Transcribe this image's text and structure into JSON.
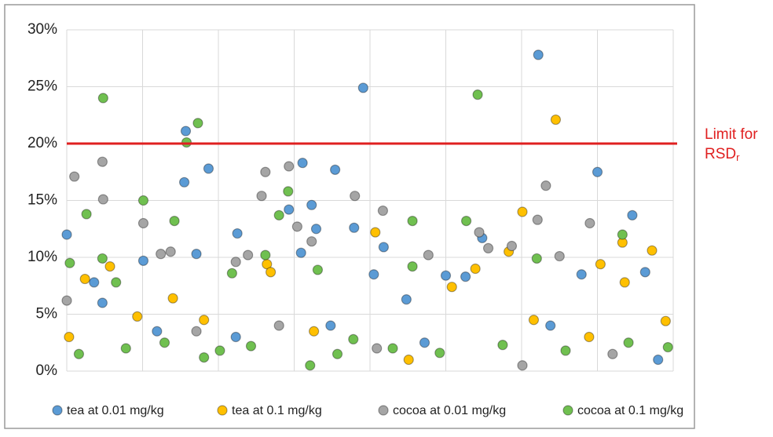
{
  "chart_data": {
    "type": "scatter",
    "xlim": [
      0,
      800
    ],
    "xticks": [
      0,
      100,
      200,
      300,
      400,
      500,
      600,
      700,
      800
    ],
    "ylim": [
      0,
      30
    ],
    "yticks": [
      {
        "value": 0,
        "label": "0%"
      },
      {
        "value": 5,
        "label": "5%"
      },
      {
        "value": 10,
        "label": "10%"
      },
      {
        "value": 15,
        "label": "15%"
      },
      {
        "value": 20,
        "label": "20%"
      },
      {
        "value": 25,
        "label": "25%"
      },
      {
        "value": 30,
        "label": "30%"
      }
    ],
    "grid": true,
    "legend": "bottom",
    "limit_line": {
      "value": 20,
      "color": "#e02020",
      "label": "Limit for",
      "label2": "RSD",
      "label2_subscript": "r"
    },
    "series": [
      {
        "name": "tea at 0.01 mg/kg",
        "color": "#5b9bd5",
        "x": [
          0,
          36,
          47,
          101,
          155,
          157,
          171,
          187,
          225,
          293,
          309,
          311,
          323,
          329,
          354,
          379,
          391,
          405,
          418,
          448,
          500,
          526,
          548,
          622,
          679,
          700,
          746,
          763,
          780,
          223,
          348,
          472,
          638,
          119
        ],
        "values": [
          12,
          7.8,
          6,
          9.7,
          16.6,
          21.1,
          10.3,
          17.8,
          12.1,
          14.2,
          10.4,
          18.3,
          14.6,
          12.5,
          17.7,
          12.6,
          24.9,
          8.5,
          10.9,
          6.3,
          8.4,
          8.3,
          11.7,
          27.8,
          8.5,
          17.5,
          13.7,
          8.7,
          1,
          3,
          4,
          2.5,
          4,
          3.5
        ]
      },
      {
        "name": "tea at 0.1 mg/kg",
        "color": "#ffc000",
        "x": [
          24,
          57,
          93,
          140,
          264,
          269,
          407,
          508,
          539,
          583,
          601,
          645,
          704,
          733,
          736,
          772,
          790,
          3,
          181,
          326,
          451,
          616,
          689
        ],
        "values": [
          8.1,
          9.2,
          4.8,
          6.4,
          9.4,
          8.7,
          12.2,
          7.4,
          9,
          10.5,
          14,
          22.1,
          9.4,
          11.3,
          7.8,
          10.6,
          4.4,
          3,
          4.5,
          3.5,
          1,
          4.5,
          3
        ]
      },
      {
        "name": "cocoa at 0.01 mg/kg",
        "color": "#a5a5a5",
        "x": [
          0,
          10,
          47,
          48,
          101,
          124,
          137,
          223,
          239,
          257,
          262,
          293,
          304,
          323,
          380,
          417,
          477,
          544,
          556,
          587,
          621,
          632,
          650,
          690,
          601,
          720,
          280,
          409,
          171
        ],
        "values": [
          6.2,
          17.1,
          18.4,
          15.1,
          13,
          10.3,
          10.5,
          9.6,
          10.2,
          15.4,
          17.5,
          18,
          12.7,
          11.4,
          15.4,
          14.1,
          10.2,
          12.2,
          10.8,
          11,
          13.3,
          16.3,
          10.1,
          13,
          0.5,
          1.5,
          4,
          2,
          3.5
        ]
      },
      {
        "name": "cocoa at 0.1 mg/kg",
        "color": "#70c050",
        "x": [
          4,
          26,
          47,
          48,
          65,
          101,
          142,
          158,
          173,
          218,
          262,
          280,
          292,
          331,
          456,
          456,
          527,
          542,
          620,
          733,
          321,
          16,
          78,
          129,
          202,
          243,
          357,
          430,
          492,
          575,
          658,
          741,
          793,
          378,
          181
        ],
        "values": [
          9.5,
          13.8,
          9.9,
          24,
          7.8,
          15,
          13.2,
          20.1,
          21.8,
          8.6,
          10.2,
          13.7,
          15.8,
          8.9,
          13.2,
          9.2,
          13.2,
          24.3,
          9.9,
          12,
          0.5,
          1.5,
          2,
          2.5,
          1.8,
          2.2,
          1.5,
          2,
          1.6,
          2.3,
          1.8,
          2.5,
          2.1,
          2.8,
          1.2
        ]
      }
    ]
  }
}
